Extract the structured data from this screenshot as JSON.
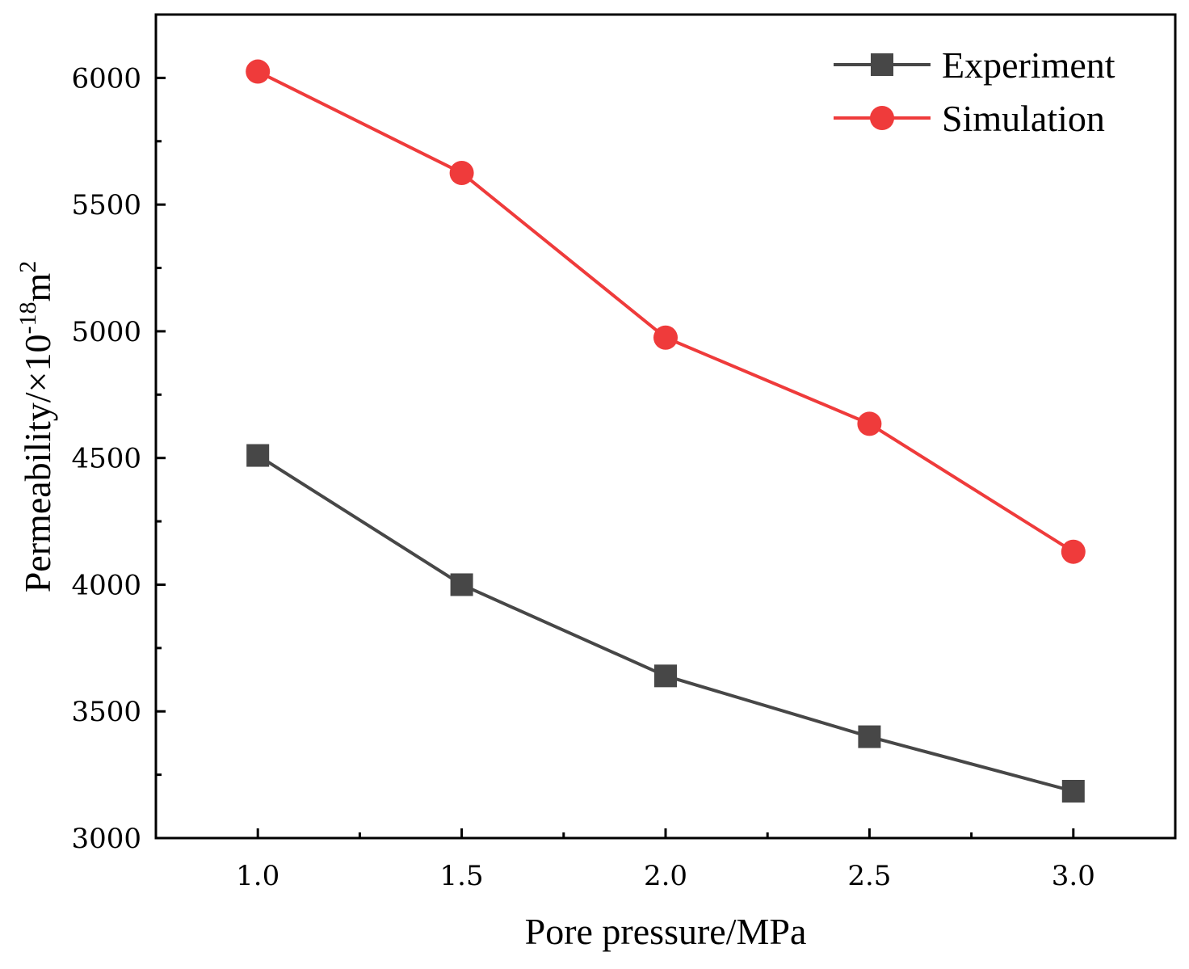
{
  "chart_data": {
    "type": "line",
    "x": [
      1.0,
      1.5,
      2.0,
      2.5,
      3.0
    ],
    "x_tick_labels": [
      "1.0",
      "1.5",
      "2.0",
      "2.5",
      "3.0"
    ],
    "y_ticks": [
      3000,
      3500,
      4000,
      4500,
      5000,
      5500,
      6000
    ],
    "y_tick_labels": [
      "3000",
      "3500",
      "4000",
      "4500",
      "5000",
      "5500",
      "6000"
    ],
    "xlim": [
      0.75,
      3.25
    ],
    "ylim": [
      3000,
      6250
    ],
    "xlabel": "Pore pressure/MPa",
    "ylabel": {
      "prefix": "Permeability/×10",
      "exponent": "-18",
      "unit": "m",
      "unit_exponent": "2"
    },
    "legend_position": "top-right",
    "series": [
      {
        "name": "Experiment",
        "color": "#474747",
        "marker": "square",
        "values": [
          4510,
          4000,
          3640,
          3400,
          3185
        ]
      },
      {
        "name": "Simulation",
        "color": "#ef3b3b",
        "marker": "circle",
        "values": [
          6025,
          5625,
          4975,
          4635,
          4130
        ]
      }
    ]
  }
}
